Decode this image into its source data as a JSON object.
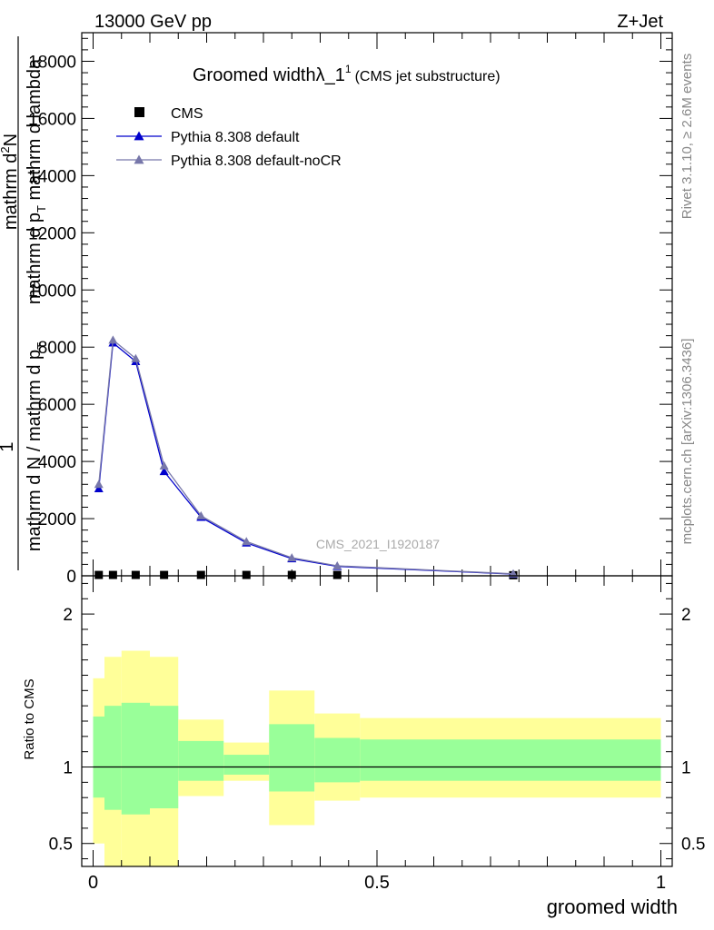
{
  "header": {
    "energy": "13000 GeV pp",
    "process": "Z+Jet"
  },
  "side_labels": {
    "rivet": "Rivet 3.1.10, ≥ 2.6M events",
    "mcplots": "mcplots.cern.ch [arXiv:1306.3436]"
  },
  "ylabel_main": {
    "line1": "mathrm d",
    "line1_sup": "2",
    "line1_rest": "N",
    "line2": "mathrm d p",
    "line2_sub": "T",
    "line2_rest": " mathrm d lambda",
    "numer": "1",
    "denom1": "mathrm d N / mathrm d p",
    "denom1_sub": "T"
  },
  "chart_data": [
    {
      "type": "line",
      "title": "Groomed width",
      "title_symbol": "λ_1",
      "title_sup": "1",
      "subtitle": "(CMS jet substructure)",
      "watermark": "CMS_2021_I1920187",
      "ylim": [
        0,
        19000
      ],
      "xlim": [
        -0.02,
        1.02
      ],
      "yticks": [
        0,
        2000,
        4000,
        6000,
        8000,
        10000,
        12000,
        14000,
        16000,
        18000
      ],
      "ytick_labels": [
        "0",
        "2000",
        "4000",
        "6000",
        "8000",
        "10000",
        "12000",
        "14000",
        "16000",
        "18000"
      ],
      "legend": {
        "position": "top-left"
      },
      "series": [
        {
          "name": "CMS",
          "marker": "square",
          "color": "#000000",
          "x": [
            0.01,
            0.035,
            0.075,
            0.125,
            0.19,
            0.27,
            0.35,
            0.43,
            0.74
          ],
          "y": [
            30,
            30,
            30,
            30,
            30,
            30,
            30,
            30,
            20
          ]
        },
        {
          "name": "Pythia 8.308 default",
          "marker": "triangle",
          "color": "#0000cc",
          "x": [
            0.01,
            0.035,
            0.075,
            0.125,
            0.19,
            0.27,
            0.35,
            0.43,
            0.74
          ],
          "y": [
            3050,
            8150,
            7500,
            3650,
            2050,
            1150,
            600,
            330,
            60
          ]
        },
        {
          "name": "Pythia 8.308 default-noCR",
          "marker": "triangle",
          "color": "#7777aa",
          "x": [
            0.01,
            0.035,
            0.075,
            0.125,
            0.19,
            0.27,
            0.35,
            0.43,
            0.74
          ],
          "y": [
            3200,
            8250,
            7600,
            3850,
            2100,
            1200,
            630,
            350,
            70
          ]
        }
      ]
    },
    {
      "type": "area",
      "ylabel": "Ratio to CMS",
      "xlabel": "groomed width",
      "xlim": [
        -0.02,
        1.02
      ],
      "ylim": [
        0.35,
        2.25
      ],
      "xticks": [
        0,
        0.5,
        1
      ],
      "xtick_labels": [
        "0",
        "0.5",
        "1"
      ],
      "yticks": [
        0.5,
        1,
        2
      ],
      "ytick_labels": [
        "0.5",
        "1",
        "2"
      ],
      "reference_line": 1,
      "bands": {
        "edges": [
          0,
          0.02,
          0.05,
          0.1,
          0.15,
          0.23,
          0.31,
          0.39,
          0.47,
          1.0
        ],
        "inner_color": "#99ff99",
        "outer_color": "#ffff99",
        "inner_low": [
          0.8,
          0.72,
          0.69,
          0.73,
          0.91,
          0.95,
          0.84,
          0.9,
          0.91
        ],
        "inner_high": [
          1.33,
          1.4,
          1.42,
          1.4,
          1.17,
          1.08,
          1.28,
          1.19,
          1.18
        ],
        "outer_low": [
          0.5,
          0.3,
          0.3,
          0.3,
          0.81,
          0.91,
          0.62,
          0.78,
          0.8
        ],
        "outer_high": [
          1.58,
          1.72,
          1.76,
          1.72,
          1.31,
          1.16,
          1.5,
          1.35,
          1.32
        ]
      }
    }
  ]
}
